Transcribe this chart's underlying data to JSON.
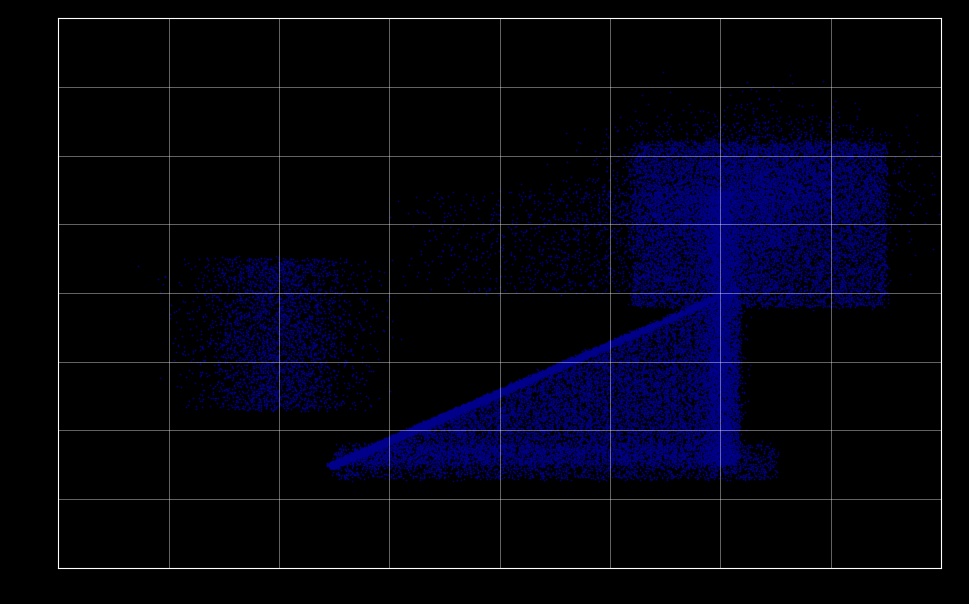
{
  "background_color": "#000000",
  "plot_bg_color": "#000000",
  "dot_color": "#00008B",
  "dot_size": 1.5,
  "dot_alpha": 0.9,
  "grid_color": "#ffffff",
  "grid_alpha": 0.4,
  "grid_linewidth": 0.7,
  "spine_color": "#ffffff",
  "tick_color": "#000000",
  "xlim": [
    0,
    8
  ],
  "ylim": [
    0,
    8
  ],
  "xticks": [
    0,
    1,
    2,
    3,
    4,
    5,
    6,
    7,
    8
  ],
  "yticks": [
    0,
    1,
    2,
    3,
    4,
    5,
    6,
    7,
    8
  ],
  "n_points": 60000,
  "seed": 42
}
